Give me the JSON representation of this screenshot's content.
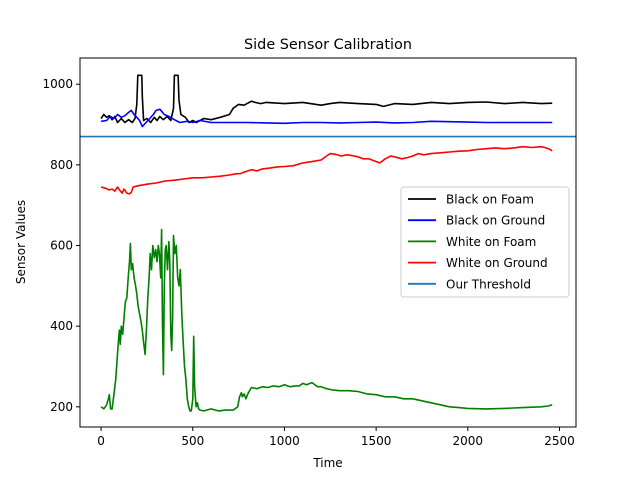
{
  "chart_data": {
    "type": "line",
    "title": "Side Sensor Calibration",
    "xlabel": "Time",
    "ylabel": "Sensor Values",
    "xlim": [
      -115,
      2590
    ],
    "ylim": [
      150,
      1065
    ],
    "xticks": [
      0,
      500,
      1000,
      1500,
      2000,
      2500
    ],
    "yticks": [
      200,
      400,
      600,
      800,
      1000
    ],
    "grid": false,
    "legend_position": "center-right",
    "threshold": 870,
    "series": [
      {
        "name": "Black on Foam",
        "color": "#000000",
        "points": [
          [
            0,
            915
          ],
          [
            15,
            925
          ],
          [
            30,
            918
          ],
          [
            45,
            922
          ],
          [
            60,
            912
          ],
          [
            75,
            920
          ],
          [
            90,
            905
          ],
          [
            110,
            915
          ],
          [
            130,
            905
          ],
          [
            150,
            912
          ],
          [
            170,
            905
          ],
          [
            185,
            915
          ],
          [
            195,
            950
          ],
          [
            200,
            1022
          ],
          [
            222,
            1022
          ],
          [
            225,
            970
          ],
          [
            232,
            910
          ],
          [
            250,
            915
          ],
          [
            270,
            905
          ],
          [
            290,
            918
          ],
          [
            305,
            910
          ],
          [
            320,
            920
          ],
          [
            340,
            912
          ],
          [
            360,
            920
          ],
          [
            380,
            910
          ],
          [
            395,
            940
          ],
          [
            400,
            1022
          ],
          [
            420,
            1022
          ],
          [
            425,
            960
          ],
          [
            435,
            925
          ],
          [
            460,
            918
          ],
          [
            480,
            905
          ],
          [
            500,
            910
          ],
          [
            520,
            905
          ],
          [
            560,
            915
          ],
          [
            600,
            912
          ],
          [
            650,
            918
          ],
          [
            700,
            925
          ],
          [
            720,
            940
          ],
          [
            750,
            950
          ],
          [
            780,
            948
          ],
          [
            820,
            958
          ],
          [
            840,
            955
          ],
          [
            870,
            952
          ],
          [
            900,
            955
          ],
          [
            1000,
            952
          ],
          [
            1100,
            955
          ],
          [
            1200,
            948
          ],
          [
            1250,
            952
          ],
          [
            1300,
            955
          ],
          [
            1400,
            952
          ],
          [
            1500,
            950
          ],
          [
            1540,
            945
          ],
          [
            1600,
            952
          ],
          [
            1700,
            950
          ],
          [
            1800,
            955
          ],
          [
            1900,
            952
          ],
          [
            2000,
            955
          ],
          [
            2100,
            956
          ],
          [
            2200,
            952
          ],
          [
            2300,
            955
          ],
          [
            2400,
            952
          ],
          [
            2460,
            953
          ]
        ]
      },
      {
        "name": "Black on Ground",
        "color": "#0000ff",
        "points": [
          [
            0,
            908
          ],
          [
            30,
            910
          ],
          [
            50,
            920
          ],
          [
            70,
            915
          ],
          [
            90,
            925
          ],
          [
            110,
            918
          ],
          [
            130,
            922
          ],
          [
            150,
            930
          ],
          [
            165,
            935
          ],
          [
            180,
            925
          ],
          [
            195,
            918
          ],
          [
            210,
            910
          ],
          [
            225,
            895
          ],
          [
            245,
            905
          ],
          [
            265,
            915
          ],
          [
            285,
            925
          ],
          [
            300,
            935
          ],
          [
            320,
            938
          ],
          [
            345,
            925
          ],
          [
            370,
            920
          ],
          [
            400,
            912
          ],
          [
            430,
            905
          ],
          [
            470,
            908
          ],
          [
            500,
            905
          ],
          [
            540,
            910
          ],
          [
            600,
            905
          ],
          [
            700,
            905
          ],
          [
            800,
            905
          ],
          [
            900,
            904
          ],
          [
            1000,
            903
          ],
          [
            1100,
            905
          ],
          [
            1200,
            905
          ],
          [
            1300,
            904
          ],
          [
            1400,
            905
          ],
          [
            1500,
            906
          ],
          [
            1600,
            904
          ],
          [
            1700,
            905
          ],
          [
            1800,
            908
          ],
          [
            1900,
            907
          ],
          [
            2000,
            906
          ],
          [
            2100,
            905
          ],
          [
            2200,
            905
          ],
          [
            2300,
            905
          ],
          [
            2400,
            905
          ],
          [
            2460,
            905
          ]
        ]
      },
      {
        "name": "White on Foam",
        "color": "#008000",
        "points": [
          [
            0,
            200
          ],
          [
            15,
            195
          ],
          [
            30,
            205
          ],
          [
            40,
            220
          ],
          [
            45,
            230
          ],
          [
            52,
            195
          ],
          [
            60,
            195
          ],
          [
            70,
            230
          ],
          [
            80,
            270
          ],
          [
            88,
            320
          ],
          [
            95,
            365
          ],
          [
            100,
            390
          ],
          [
            105,
            355
          ],
          [
            110,
            400
          ],
          [
            118,
            380
          ],
          [
            125,
            420
          ],
          [
            132,
            460
          ],
          [
            140,
            470
          ],
          [
            148,
            520
          ],
          [
            155,
            560
          ],
          [
            160,
            605
          ],
          [
            165,
            540
          ],
          [
            172,
            555
          ],
          [
            180,
            520
          ],
          [
            188,
            500
          ],
          [
            195,
            480
          ],
          [
            202,
            450
          ],
          [
            210,
            430
          ],
          [
            218,
            410
          ],
          [
            225,
            390
          ],
          [
            232,
            360
          ],
          [
            240,
            330
          ],
          [
            248,
            400
          ],
          [
            255,
            470
          ],
          [
            262,
            520
          ],
          [
            268,
            580
          ],
          [
            275,
            540
          ],
          [
            282,
            600
          ],
          [
            290,
            570
          ],
          [
            298,
            590
          ],
          [
            305,
            560
          ],
          [
            312,
            600
          ],
          [
            318,
            580
          ],
          [
            325,
            520
          ],
          [
            330,
            640
          ],
          [
            335,
            400
          ],
          [
            340,
            280
          ],
          [
            345,
            500
          ],
          [
            350,
            590
          ],
          [
            355,
            600
          ],
          [
            362,
            540
          ],
          [
            370,
            610
          ],
          [
            375,
            560
          ],
          [
            380,
            380
          ],
          [
            385,
            340
          ],
          [
            390,
            420
          ],
          [
            395,
            625
          ],
          [
            402,
            580
          ],
          [
            410,
            600
          ],
          [
            418,
            520
          ],
          [
            425,
            500
          ],
          [
            432,
            540
          ],
          [
            440,
            430
          ],
          [
            448,
            360
          ],
          [
            455,
            300
          ],
          [
            462,
            270
          ],
          [
            470,
            220
          ],
          [
            478,
            200
          ],
          [
            485,
            190
          ],
          [
            492,
            190
          ],
          [
            500,
            220
          ],
          [
            505,
            375
          ],
          [
            510,
            250
          ],
          [
            518,
            200
          ],
          [
            525,
            210
          ],
          [
            532,
            195
          ],
          [
            540,
            192
          ],
          [
            560,
            190
          ],
          [
            600,
            195
          ],
          [
            640,
            190
          ],
          [
            680,
            192
          ],
          [
            720,
            192
          ],
          [
            745,
            200
          ],
          [
            755,
            225
          ],
          [
            765,
            235
          ],
          [
            770,
            225
          ],
          [
            780,
            232
          ],
          [
            790,
            220
          ],
          [
            800,
            232
          ],
          [
            820,
            248
          ],
          [
            850,
            245
          ],
          [
            880,
            250
          ],
          [
            910,
            248
          ],
          [
            940,
            252
          ],
          [
            970,
            250
          ],
          [
            1000,
            255
          ],
          [
            1030,
            250
          ],
          [
            1060,
            252
          ],
          [
            1080,
            252
          ],
          [
            1100,
            258
          ],
          [
            1120,
            255
          ],
          [
            1150,
            260
          ],
          [
            1180,
            250
          ],
          [
            1200,
            250
          ],
          [
            1230,
            245
          ],
          [
            1260,
            242
          ],
          [
            1300,
            240
          ],
          [
            1350,
            240
          ],
          [
            1400,
            238
          ],
          [
            1450,
            232
          ],
          [
            1500,
            230
          ],
          [
            1550,
            225
          ],
          [
            1600,
            225
          ],
          [
            1650,
            220
          ],
          [
            1700,
            220
          ],
          [
            1750,
            215
          ],
          [
            1800,
            210
          ],
          [
            1850,
            205
          ],
          [
            1900,
            200
          ],
          [
            1950,
            198
          ],
          [
            2000,
            196
          ],
          [
            2100,
            195
          ],
          [
            2200,
            196
          ],
          [
            2300,
            198
          ],
          [
            2400,
            200
          ],
          [
            2440,
            202
          ],
          [
            2460,
            205
          ]
        ]
      },
      {
        "name": "White on Ground",
        "color": "#ff0000",
        "points": [
          [
            0,
            745
          ],
          [
            25,
            742
          ],
          [
            45,
            738
          ],
          [
            60,
            740
          ],
          [
            75,
            735
          ],
          [
            90,
            745
          ],
          [
            100,
            738
          ],
          [
            115,
            730
          ],
          [
            125,
            740
          ],
          [
            140,
            730
          ],
          [
            155,
            728
          ],
          [
            165,
            732
          ],
          [
            175,
            745
          ],
          [
            200,
            748
          ],
          [
            250,
            752
          ],
          [
            300,
            755
          ],
          [
            350,
            760
          ],
          [
            400,
            762
          ],
          [
            450,
            765
          ],
          [
            500,
            768
          ],
          [
            550,
            768
          ],
          [
            600,
            770
          ],
          [
            650,
            772
          ],
          [
            700,
            775
          ],
          [
            740,
            778
          ],
          [
            760,
            778
          ],
          [
            780,
            782
          ],
          [
            820,
            788
          ],
          [
            850,
            785
          ],
          [
            880,
            790
          ],
          [
            920,
            792
          ],
          [
            960,
            795
          ],
          [
            1000,
            796
          ],
          [
            1050,
            798
          ],
          [
            1100,
            805
          ],
          [
            1150,
            808
          ],
          [
            1200,
            812
          ],
          [
            1230,
            822
          ],
          [
            1250,
            828
          ],
          [
            1280,
            826
          ],
          [
            1310,
            822
          ],
          [
            1340,
            825
          ],
          [
            1370,
            823
          ],
          [
            1400,
            820
          ],
          [
            1430,
            815
          ],
          [
            1460,
            815
          ],
          [
            1500,
            808
          ],
          [
            1520,
            805
          ],
          [
            1550,
            815
          ],
          [
            1580,
            822
          ],
          [
            1600,
            820
          ],
          [
            1640,
            815
          ],
          [
            1670,
            818
          ],
          [
            1700,
            822
          ],
          [
            1730,
            828
          ],
          [
            1760,
            825
          ],
          [
            1800,
            828
          ],
          [
            1850,
            830
          ],
          [
            1900,
            832
          ],
          [
            1950,
            834
          ],
          [
            2000,
            835
          ],
          [
            2050,
            838
          ],
          [
            2100,
            840
          ],
          [
            2150,
            842
          ],
          [
            2200,
            840
          ],
          [
            2250,
            842
          ],
          [
            2300,
            845
          ],
          [
            2350,
            843
          ],
          [
            2400,
            845
          ],
          [
            2420,
            843
          ],
          [
            2440,
            840
          ],
          [
            2460,
            835
          ]
        ]
      },
      {
        "name": "Our Threshold",
        "color": "#1f77b4",
        "points": [
          [
            -115,
            870
          ],
          [
            2590,
            870
          ]
        ]
      }
    ]
  }
}
